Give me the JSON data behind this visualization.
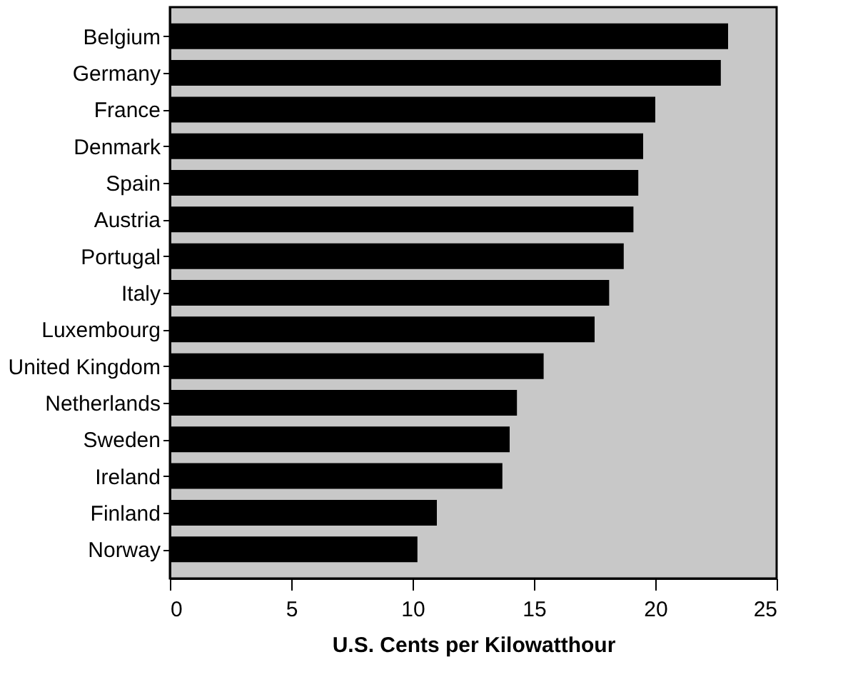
{
  "chart_data": {
    "type": "bar",
    "orientation": "horizontal",
    "xlabel": "U.S. Cents per Kilowatthour",
    "categories": [
      "Belgium",
      "Germany",
      "France",
      "Denmark",
      "Spain",
      "Austria",
      "Portugal",
      "Italy",
      "Luxembourg",
      "United Kingdom",
      "Netherlands",
      "Sweden",
      "Ireland",
      "Finland",
      "Norway"
    ],
    "values": [
      23.0,
      22.7,
      20.0,
      19.5,
      19.3,
      19.1,
      18.7,
      18.1,
      17.5,
      15.4,
      14.3,
      14.0,
      13.7,
      11.0,
      10.2
    ],
    "color": "#000000",
    "xlim": [
      0,
      25
    ],
    "xticks": [
      0,
      5,
      10,
      15,
      20,
      25
    ],
    "grid": false
  }
}
